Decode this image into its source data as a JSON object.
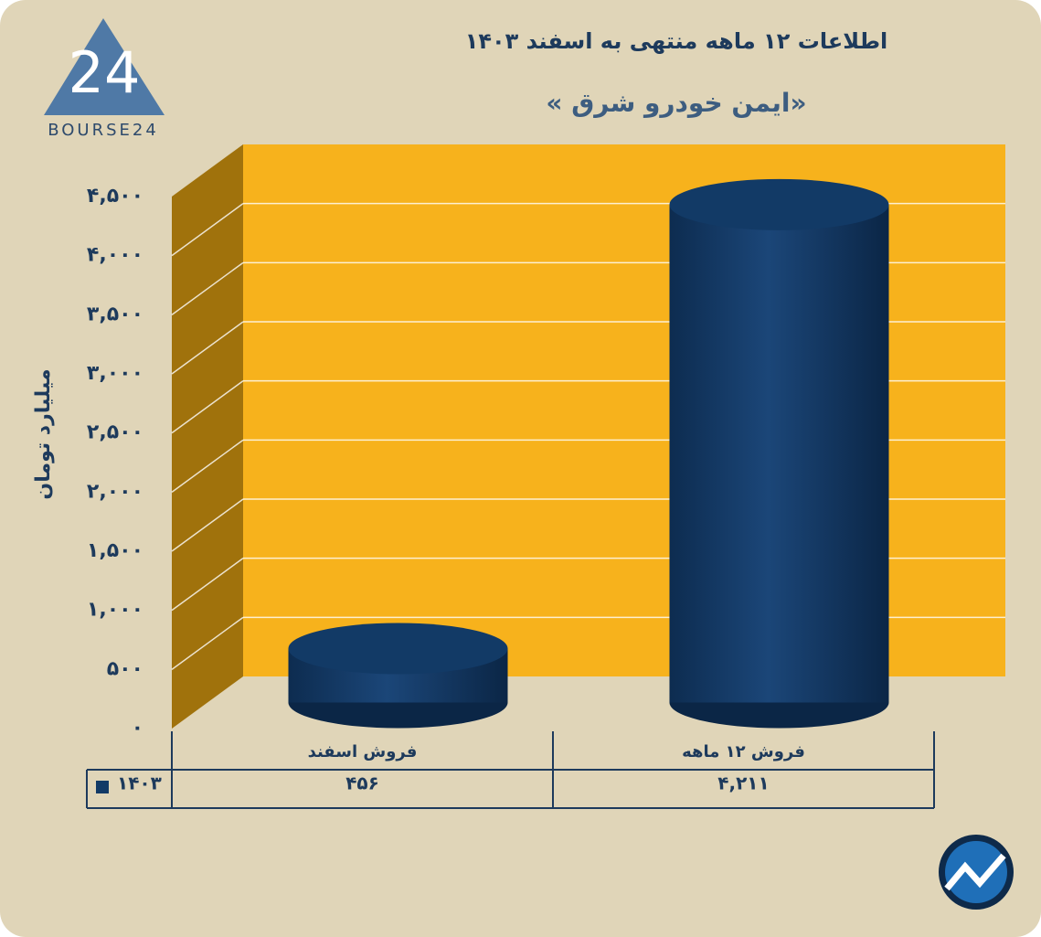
{
  "brand": {
    "mark": "24",
    "name": "BOURSE24"
  },
  "chart_data": {
    "type": "bar3d",
    "title": "اطلاعات ۱۲ ماهه منتهی به اسفند ۱۴۰۳",
    "subtitle": "« ایمن خودرو شرق»",
    "y_label": "میلیارد تومان",
    "categories": [
      "فروش اسفند",
      "فروش ۱۲ ماهه"
    ],
    "series": [
      {
        "name": "۱۴۰۳",
        "color": "#123a66",
        "values": [
          456,
          4211
        ],
        "value_labels": [
          "۴۵۶",
          "۴,۲۱۱"
        ]
      }
    ],
    "ylim": [
      0,
      4500
    ],
    "yticks": [
      {
        "value": 0,
        "label": "۰"
      },
      {
        "value": 500,
        "label": "۵۰۰"
      },
      {
        "value": 1000,
        "label": "۱,۰۰۰"
      },
      {
        "value": 1500,
        "label": "۱,۵۰۰"
      },
      {
        "value": 2000,
        "label": "۲,۰۰۰"
      },
      {
        "value": 2500,
        "label": "۲,۵۰۰"
      },
      {
        "value": 3000,
        "label": "۳,۰۰۰"
      },
      {
        "value": 3500,
        "label": "۳,۵۰۰"
      },
      {
        "value": 4000,
        "label": "۴,۰۰۰"
      },
      {
        "value": 4500,
        "label": "۴,۵۰۰"
      }
    ],
    "grid": true,
    "wall_color": "#f7b21c",
    "side_color": "#a0720c"
  }
}
